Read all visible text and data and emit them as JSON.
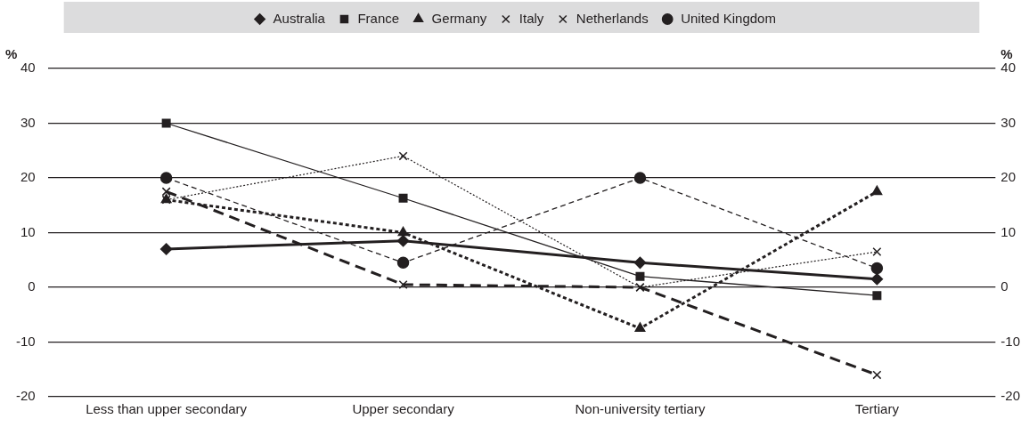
{
  "chart_data": {
    "type": "line",
    "categories": [
      "Less than upper secondary",
      "Upper secondary",
      "Non-university tertiary",
      "Tertiary"
    ],
    "ylabel": "%",
    "y2label": "%",
    "ylim": [
      -20,
      40
    ],
    "yticks": [
      -20,
      -10,
      0,
      10,
      20,
      30,
      40
    ],
    "y2lim": [
      -20,
      40
    ],
    "y2ticks": [
      -20,
      -10,
      0,
      10,
      20,
      30,
      40
    ],
    "grid": "y",
    "legend": "top",
    "series": [
      {
        "name": "Australia",
        "color": "#231f20",
        "marker": "diamond",
        "line_style": "solid",
        "values": [
          7,
          8.5,
          4.5,
          1.5
        ]
      },
      {
        "name": "France",
        "color": "#231f20",
        "marker": "square",
        "line_style": "solid",
        "values": [
          30,
          16.3,
          2,
          -1.5
        ]
      },
      {
        "name": "Germany",
        "color": "#231f20",
        "marker": "triangle",
        "line_style": "dotted",
        "values": [
          16,
          10,
          -7.5,
          17.5
        ]
      },
      {
        "name": "Italy",
        "color": "#231f20",
        "marker": "cross",
        "line_style": "dotted",
        "values": [
          16,
          24,
          0,
          6.5
        ]
      },
      {
        "name": "Netherlands",
        "color": "#231f20",
        "marker": "cross",
        "line_style": "dashed",
        "values": [
          17.5,
          0.5,
          0,
          -16
        ]
      },
      {
        "name": "United Kingdom",
        "color": "#231f20",
        "marker": "circle",
        "line_style": "dashed",
        "values": [
          20,
          4.5,
          20,
          3.5
        ]
      }
    ]
  }
}
